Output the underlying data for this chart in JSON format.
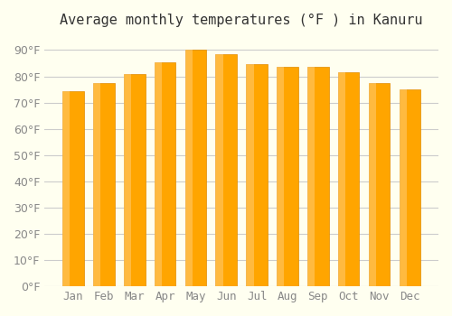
{
  "title": "Average monthly temperatures (°F ) in Kanuru",
  "months": [
    "Jan",
    "Feb",
    "Mar",
    "Apr",
    "May",
    "Jun",
    "Jul",
    "Aug",
    "Sep",
    "Oct",
    "Nov",
    "Dec"
  ],
  "values": [
    74.5,
    77.5,
    81.0,
    85.5,
    90.0,
    88.5,
    84.5,
    83.5,
    83.5,
    81.5,
    77.5,
    75.0
  ],
  "bar_color": "#FFA500",
  "bar_edge_color": "#E08C00",
  "background_color": "#FFFFF0",
  "grid_color": "#CCCCCC",
  "ylim": [
    0,
    95
  ],
  "yticks": [
    0,
    10,
    20,
    30,
    40,
    50,
    60,
    70,
    80,
    90
  ],
  "title_fontsize": 11,
  "tick_fontsize": 9
}
